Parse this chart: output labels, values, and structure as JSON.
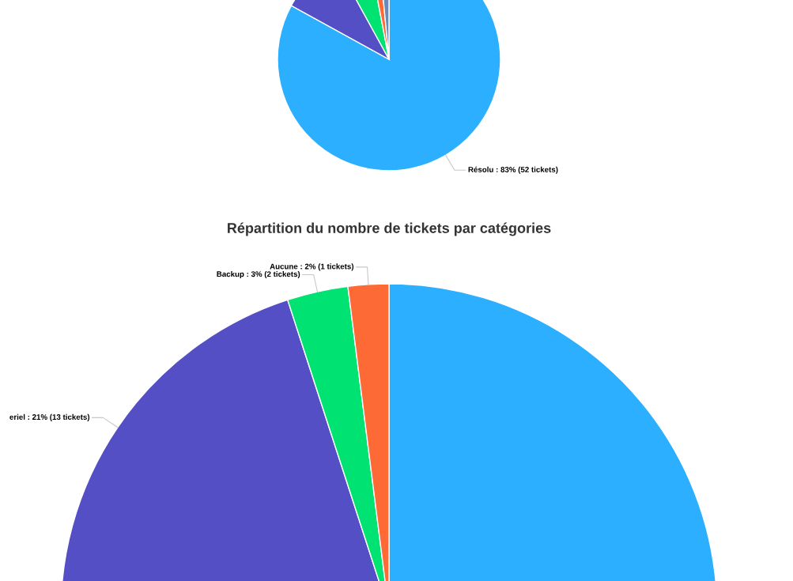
{
  "chart_data": [
    {
      "type": "pie",
      "categories": [
        "Résolu : 83% (52 tickets)",
        null,
        null,
        null,
        null
      ],
      "values": [
        83,
        9,
        5,
        1.5,
        1.5
      ],
      "colors": [
        "#2caffe",
        "#544fc5",
        "#00e272",
        "#fe6a35",
        "#6b8abc"
      ],
      "legend": false
    },
    {
      "type": "pie",
      "title": "Répartition du nombre de tickets par catégories",
      "categories": [
        null,
        "eriel : 21% (13 tickets)",
        "Backup : 3% (2 tickets)",
        "Aucune : 2% (1 tickets)"
      ],
      "values": [
        74,
        21,
        3,
        2
      ],
      "colors": [
        "#2caffe",
        "#544fc5",
        "#00e272",
        "#fe6a35"
      ],
      "legend": false
    }
  ]
}
